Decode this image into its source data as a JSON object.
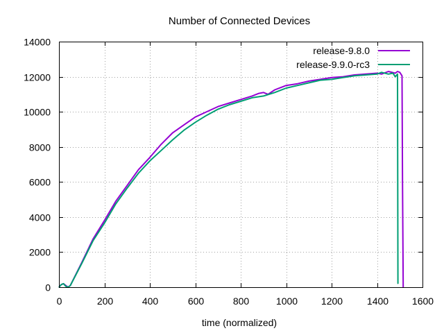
{
  "chart_data": {
    "type": "line",
    "title": "Number of Connected Devices",
    "xlabel": "time (normalized)",
    "ylabel": "",
    "xlim": [
      0,
      1600
    ],
    "ylim": [
      0,
      14000
    ],
    "x_ticks": [
      0,
      200,
      400,
      600,
      800,
      1000,
      1200,
      1400,
      1600
    ],
    "y_ticks": [
      0,
      2000,
      4000,
      6000,
      8000,
      10000,
      12000,
      14000
    ],
    "grid": true,
    "legend_position": "top-right",
    "series": [
      {
        "name": "release-9.8.0",
        "color": "#9400d3",
        "x": [
          0,
          10,
          20,
          30,
          40,
          50,
          100,
          150,
          200,
          250,
          300,
          350,
          400,
          450,
          500,
          550,
          600,
          650,
          700,
          750,
          800,
          850,
          880,
          900,
          920,
          950,
          1000,
          1050,
          1100,
          1150,
          1200,
          1250,
          1300,
          1350,
          1400,
          1420,
          1450,
          1480,
          1490,
          1500,
          1510,
          1512,
          1515
        ],
        "y": [
          0,
          150,
          200,
          100,
          0,
          100,
          1400,
          2750,
          3800,
          4900,
          5800,
          6700,
          7400,
          8150,
          8800,
          9250,
          9700,
          10000,
          10300,
          10500,
          10700,
          10900,
          11050,
          11100,
          11000,
          11250,
          11500,
          11600,
          11750,
          11850,
          11950,
          12000,
          12100,
          12150,
          12200,
          12150,
          12300,
          12200,
          12300,
          12250,
          12050,
          6000,
          0
        ]
      },
      {
        "name": "release-9.9.0-rc3",
        "color": "#009e73",
        "x": [
          0,
          10,
          20,
          30,
          40,
          50,
          100,
          150,
          200,
          250,
          300,
          350,
          400,
          450,
          500,
          550,
          600,
          650,
          700,
          750,
          800,
          850,
          900,
          950,
          1000,
          1050,
          1100,
          1150,
          1200,
          1250,
          1300,
          1350,
          1400,
          1420,
          1450,
          1470,
          1480,
          1490,
          1492
        ],
        "y": [
          0,
          150,
          200,
          50,
          0,
          100,
          1350,
          2650,
          3650,
          4750,
          5650,
          6500,
          7200,
          7800,
          8400,
          8950,
          9400,
          9800,
          10150,
          10400,
          10600,
          10800,
          10900,
          11100,
          11350,
          11500,
          11650,
          11800,
          11850,
          11950,
          12050,
          12100,
          12150,
          12250,
          12150,
          12200,
          12000,
          12150,
          200
        ]
      }
    ]
  }
}
